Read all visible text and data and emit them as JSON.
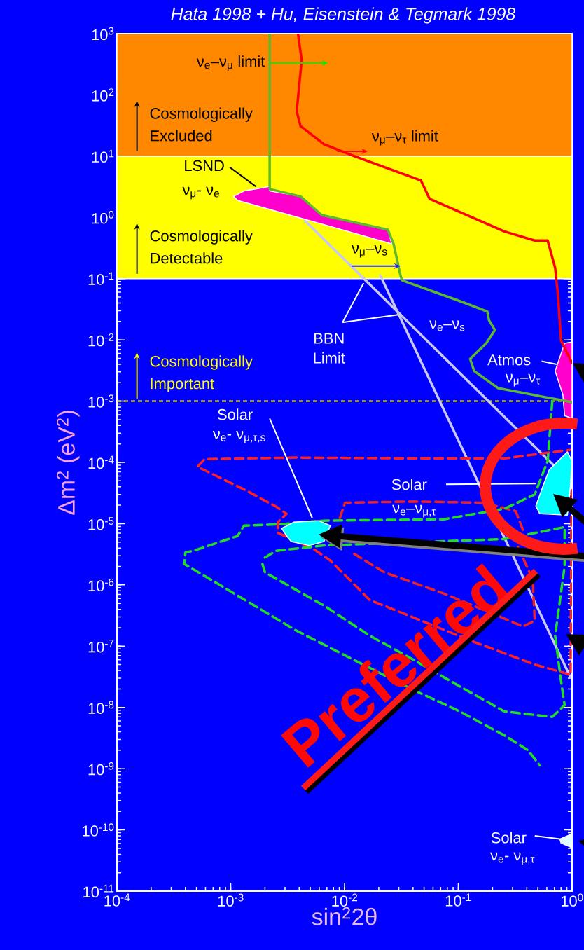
{
  "chart_data": {
    "type": "line",
    "title": "Hata 1998 + Hu, Eisenstein & Tegmark 1998",
    "xlabel": "sin$^{2}$2θ",
    "ylabel": "Δm$^{2}$ (eV$^{2}$)",
    "log": "xy",
    "xlim": [
      0.0001,
      1
    ],
    "ylim": [
      1e-11,
      1000
    ],
    "xticks": [
      {
        "value": 0.0001,
        "label": "10$^{-4}$"
      },
      {
        "value": 0.001,
        "label": "10$^{-3}$"
      },
      {
        "value": 0.01,
        "label": "10$^{-2}$"
      },
      {
        "value": 0.1,
        "label": "10$^{-1}$"
      },
      {
        "value": 1,
        "label": "10$^{0}$"
      }
    ],
    "yticks": [
      {
        "value": 1e-11,
        "label": "10$^{-11}$"
      },
      {
        "value": 1e-10,
        "label": "10$^{-10}$"
      },
      {
        "value": 1e-09,
        "label": "10$^{-9}$"
      },
      {
        "value": 1e-08,
        "label": "10$^{-8}$"
      },
      {
        "value": 1e-07,
        "label": "10$^{-7}$"
      },
      {
        "value": 1e-06,
        "label": "10$^{-6}$"
      },
      {
        "value": 1e-05,
        "label": "10$^{-5}$"
      },
      {
        "value": 0.0001,
        "label": "10$^{-4}$"
      },
      {
        "value": 0.001,
        "label": "10$^{-3}$"
      },
      {
        "value": 0.01,
        "label": "10$^{-2}$"
      },
      {
        "value": 0.1,
        "label": "10$^{-1}$"
      },
      {
        "value": 1,
        "label": "10$^{0}$"
      },
      {
        "value": 10,
        "label": "10$^{1}$"
      },
      {
        "value": 100,
        "label": "10$^{2}$"
      },
      {
        "value": 1000,
        "label": "10$^{3}$"
      }
    ],
    "bands": [
      {
        "axis": "y",
        "from": 10,
        "to": 1000,
        "label": "Cosmologically Excluded",
        "color": "#ff8800"
      },
      {
        "axis": "y",
        "from": 0.1,
        "to": 10,
        "label": "Cosmologically Detectable",
        "color": "#ffff00"
      }
    ],
    "ref_lines": [
      {
        "axis": "y",
        "value": 0.001,
        "label": "Cosmologically Important",
        "color": "#ffff00",
        "line_style": "dashed"
      }
    ],
    "series": [
      {
        "color": "#c8c8f0",
        "x": [
          0.0045,
          0.7
        ],
        "values": [
          0.88,
          8.7e-05
        ]
      },
      {
        "color": "#c8c8f0",
        "x": [
          0.0206,
          0.96
        ],
        "values": [
          0.113,
          3.2e-08
        ]
      },
      {
        "color": "#ff2020",
        "line_style": "dashed",
        "x": [
          0.99,
          0.97,
          0.84,
          0.47,
          0.138,
          0.041,
          0.0166,
          0.0075,
          0.0054,
          0.0026,
          0.0026,
          0.0031,
          0.0025,
          0.00136,
          0.00051,
          0.00059,
          0.0037,
          0.041,
          0.254,
          0.96
        ],
        "values": [
          3.5e-05,
          3.4e-08,
          3.7e-08,
          5e-08,
          1.17e-07,
          2.9e-07,
          5.7e-07,
          2.5e-06,
          3.8e-06,
          7.1e-06,
          1.06e-05,
          1.45e-05,
          1.9e-05,
          3.5e-05,
          8.5e-05,
          0.000113,
          0.00012,
          0.000116,
          0.000116,
          0.00016
        ]
      },
      {
        "color": "#ee2222",
        "line_style": "dashed",
        "x": [
          0.0091,
          0.0101,
          0.041,
          0.166,
          0.32,
          0.37,
          0.33,
          0.45,
          0.47,
          0.37,
          0.186,
          0.075,
          0.0224,
          0.0122
        ],
        "values": [
          1.24e-05,
          2.2e-05,
          2.3e-05,
          2.2e-05,
          1.6e-05,
          7.9e-06,
          4.4e-06,
          1.25e-06,
          2.6e-07,
          2.1e-07,
          3.6e-07,
          7.2e-07,
          1.6e-06,
          3.2e-06
        ]
      },
      {
        "color": "#22dd22",
        "line_style": "dashed",
        "x": [
          0.67,
          0.61,
          0.47,
          0.254,
          0.075,
          0.0066,
          0.0027,
          0.00131,
          0.00115,
          0.00047,
          0.0004,
          0.00039,
          0.0008,
          0.0037,
          0.0122,
          0.041,
          0.103,
          0.254,
          0.41,
          0.52
        ],
        "values": [
          0.001,
          0.000105,
          3e-05,
          1.75e-05,
          1.18e-05,
          1.12e-05,
          9.8e-06,
          9.3e-06,
          6.3e-06,
          3.6e-06,
          3.4e-06,
          2.2e-06,
          1e-06,
          1.83e-07,
          5.9e-08,
          1.9e-08,
          8.6e-09,
          3.5e-09,
          2e-09,
          1.13e-09
        ]
      },
      {
        "color": "#22dd22",
        "line_style": "dashed",
        "x": [
          0.002,
          0.0025,
          0.0066,
          0.254,
          0.86,
          0.86,
          0.71,
          0.8,
          0.86,
          0.67,
          0.254,
          0.103,
          0.041,
          0.0166,
          0.0066,
          0.002,
          0.00186
        ],
        "values": [
          2.8e-06,
          3.6e-06,
          4.4e-06,
          5.6e-06,
          8.8e-06,
          2e-06,
          1.49e-07,
          2.7e-08,
          1.09e-08,
          7e-09,
          8.6e-09,
          2.2e-08,
          5.9e-08,
          1.49e-07,
          4.6e-07,
          1.6e-06,
          2.5e-06
        ]
      },
      {
        "type": "area",
        "color": "#00ffff",
        "x": [
          0.0028,
          0.0036,
          0.0059,
          0.0075,
          0.0066,
          0.0049,
          0.0034,
          0.0031
        ],
        "values": [
          8.4e-06,
          1.06e-05,
          1.12e-05,
          9.3e-06,
          5.1e-06,
          4.4e-06,
          5.1e-06,
          6.3e-06
        ]
      },
      {
        "type": "area",
        "color": "#00ffff",
        "x": [
          0.63,
          0.91,
          1.0,
          0.96,
          0.91,
          0.52,
          0.48,
          0.56
        ],
        "values": [
          7.6e-05,
          0.000148,
          0.000105,
          3.5e-05,
          1.38e-05,
          1.45e-05,
          1.94e-05,
          4.3e-05
        ]
      },
      {
        "type": "area",
        "color": "#ff00cc",
        "x": [
          0.86,
          1.0,
          1.0,
          0.86,
          0.83,
          0.71
        ],
        "values": [
          0.0088,
          0.0092,
          0.00052,
          0.00058,
          0.00128,
          0.0031
        ]
      },
      {
        "type": "area",
        "color": "#e0ffff",
        "x": [
          0.78,
          1.0,
          1.0,
          0.8
        ],
        "values": [
          7.1e-11,
          8.6e-11,
          5.1e-11,
          6.1e-11
        ]
      },
      {
        "type": "area",
        "color": "#ff00cc",
        "x": [
          0.00106,
          0.00131,
          0.00166,
          0.0022,
          0.0022,
          0.0041,
          0.0063,
          0.024,
          0.026,
          0.00115
        ],
        "values": [
          2.2,
          2.7,
          2.9,
          3.2,
          2.7,
          2.2,
          1.09,
          0.63,
          0.37,
          1.9
        ]
      },
      {
        "color": "#ff0000",
        "x": [
          0.0039,
          0.0042,
          0.0038,
          0.0041,
          0.0066,
          0.0122,
          0.047,
          0.056,
          0.254,
          0.47,
          0.61,
          0.71,
          0.75,
          0.8,
          1.0
        ],
        "values": [
          1000,
          367,
          54,
          31,
          15.6,
          10,
          4.0,
          2.0,
          0.59,
          0.42,
          0.42,
          0.15,
          0.057,
          0.0097,
          0.0042
        ]
      },
      {
        "color": "#5cb82e",
        "x": [
          0.0022,
          0.0022,
          0.0041,
          0.0063,
          0.024,
          0.027,
          0.031,
          0.032,
          0.103,
          0.18,
          0.186,
          0.21,
          0.176,
          0.127,
          0.138,
          0.224,
          1.0
        ],
        "values": [
          1000,
          2.9,
          2.2,
          1.09,
          0.63,
          0.37,
          0.113,
          0.094,
          0.043,
          0.029,
          0.021,
          0.0145,
          0.0088,
          0.0049,
          0.0031,
          0.00163,
          0.00096
        ]
      }
    ],
    "annotations": [
      {
        "text": "ν$_{e}$–ν$_{μ}$ limit",
        "x": 0.0022,
        "y": 330
      },
      {
        "text": "ν$_{μ}$–ν$_{τ}$ limit",
        "x": 0.0086,
        "y": 12
      },
      {
        "text": "LSND",
        "x": 0.00166,
        "y": 3.2
      },
      "ν$_{μ}$- ν$_{e}$",
      {
        "text": "ν$_{μ}$–ν$_{s}$",
        "x": 0.031,
        "y": 0.16
      },
      {
        "text": "BBN Limit",
        "x": 0.0147,
        "y": 0.0845
      },
      "ν$_{e}$–ν$_{s}$",
      {
        "text": "Atmos",
        "x": 0.73,
        "y": 0.004
      },
      "ν$_{μ}$–ν$_{τ}$",
      {
        "text": "Solar",
        "x": 0.0052,
        "y": 1.24e-05
      },
      "ν$_{e}$- ν$_{μ,τ,s}$",
      {
        "text": "Solar",
        "x": 0.48,
        "y": 4.5e-05
      },
      "ν$_{e}$–ν$_{μ,τ}$",
      {
        "text": "Solar",
        "x": 0.78,
        "y": 7.1e-11
      },
      "ν$_{e}$- ν$_{μ,τ}$",
      "Preferred"
    ]
  }
}
